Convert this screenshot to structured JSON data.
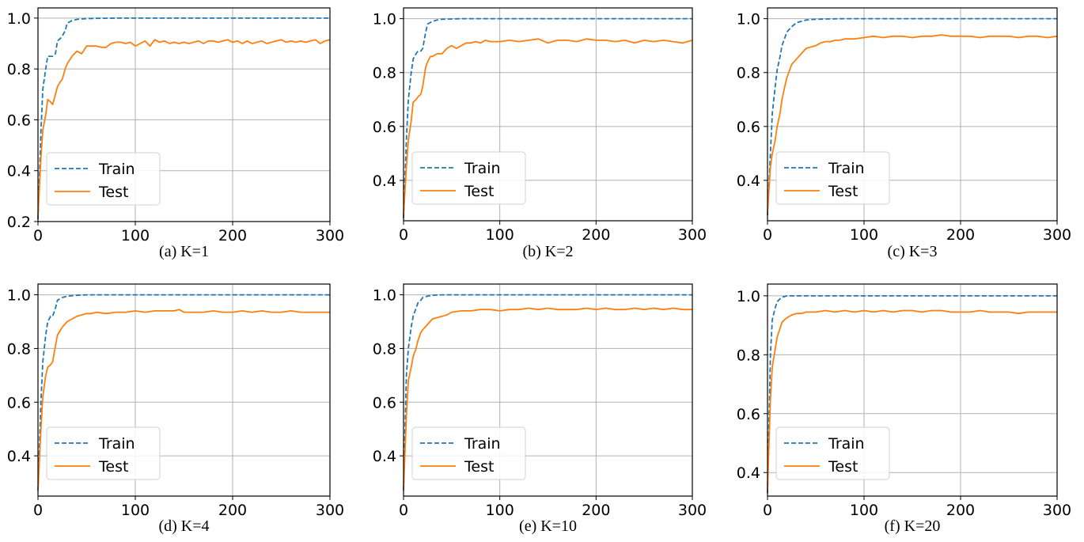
{
  "legend": {
    "train_label": "Train",
    "test_label": "Test"
  },
  "colors": {
    "train": "#1f77b4",
    "test": "#ff7f0e",
    "grid": "#b0b0b0",
    "axis": "#000000"
  },
  "chart_data": [
    {
      "type": "line",
      "caption": "(a) K=1",
      "xlim": [
        0,
        300
      ],
      "ylim": [
        0.2,
        1.04
      ],
      "xticks": [
        0,
        100,
        200,
        300
      ],
      "yticks": [
        0.2,
        0.4,
        0.6,
        0.8,
        1.0
      ],
      "yticklabels": [
        "0.2",
        "0.4",
        "0.6",
        "0.8",
        "1.0"
      ],
      "grid": true,
      "legend_position": "lower-left",
      "series": [
        {
          "name": "Train",
          "style": "dashed",
          "x": [
            0,
            3,
            5,
            8,
            10,
            13,
            15,
            18,
            20,
            23,
            25,
            28,
            30,
            35,
            40,
            50,
            60,
            80,
            100,
            150,
            200,
            250,
            300
          ],
          "y": [
            0.21,
            0.55,
            0.72,
            0.8,
            0.85,
            0.85,
            0.85,
            0.86,
            0.91,
            0.92,
            0.93,
            0.95,
            0.98,
            0.99,
            0.995,
            0.998,
            0.999,
            1.0,
            1.0,
            1.0,
            1.0,
            1.0,
            1.0
          ]
        },
        {
          "name": "Test",
          "style": "solid",
          "x": [
            0,
            3,
            5,
            8,
            10,
            13,
            15,
            18,
            20,
            23,
            25,
            28,
            30,
            35,
            40,
            45,
            50,
            55,
            60,
            65,
            70,
            75,
            80,
            85,
            90,
            95,
            100,
            105,
            110,
            115,
            120,
            125,
            130,
            135,
            140,
            145,
            150,
            155,
            160,
            165,
            170,
            175,
            180,
            185,
            190,
            195,
            200,
            205,
            210,
            215,
            220,
            225,
            230,
            235,
            240,
            245,
            250,
            255,
            260,
            265,
            270,
            275,
            280,
            285,
            290,
            295,
            300
          ],
          "y": [
            0.22,
            0.45,
            0.56,
            0.62,
            0.68,
            0.67,
            0.66,
            0.7,
            0.73,
            0.75,
            0.76,
            0.8,
            0.82,
            0.85,
            0.87,
            0.86,
            0.89,
            0.89,
            0.89,
            0.885,
            0.885,
            0.9,
            0.905,
            0.905,
            0.9,
            0.905,
            0.89,
            0.9,
            0.91,
            0.89,
            0.915,
            0.905,
            0.91,
            0.9,
            0.905,
            0.9,
            0.905,
            0.9,
            0.905,
            0.91,
            0.9,
            0.91,
            0.91,
            0.905,
            0.91,
            0.915,
            0.905,
            0.91,
            0.9,
            0.91,
            0.9,
            0.905,
            0.91,
            0.9,
            0.905,
            0.91,
            0.915,
            0.905,
            0.91,
            0.905,
            0.91,
            0.905,
            0.91,
            0.915,
            0.9,
            0.91,
            0.915
          ]
        }
      ]
    },
    {
      "type": "line",
      "caption": "(b) K=2",
      "xlim": [
        0,
        300
      ],
      "ylim": [
        0.25,
        1.04
      ],
      "xticks": [
        0,
        100,
        200,
        300
      ],
      "yticks": [
        0.4,
        0.6,
        0.8,
        1.0
      ],
      "yticklabels": [
        "0.4",
        "0.6",
        "0.8",
        "1.0"
      ],
      "grid": true,
      "legend_position": "lower-left",
      "series": [
        {
          "name": "Train",
          "style": "dashed",
          "x": [
            0,
            3,
            5,
            8,
            10,
            13,
            15,
            18,
            20,
            23,
            25,
            30,
            35,
            40,
            50,
            60,
            80,
            100,
            150,
            200,
            250,
            300
          ],
          "y": [
            0.26,
            0.55,
            0.7,
            0.8,
            0.85,
            0.87,
            0.88,
            0.88,
            0.89,
            0.95,
            0.98,
            0.99,
            0.995,
            0.998,
            0.999,
            1.0,
            1.0,
            1.0,
            1.0,
            1.0,
            1.0,
            1.0
          ]
        },
        {
          "name": "Test",
          "style": "solid",
          "x": [
            0,
            3,
            5,
            8,
            10,
            13,
            15,
            18,
            20,
            23,
            25,
            28,
            30,
            35,
            40,
            45,
            50,
            55,
            60,
            65,
            70,
            75,
            80,
            85,
            90,
            100,
            110,
            120,
            130,
            140,
            150,
            160,
            170,
            180,
            190,
            200,
            210,
            220,
            230,
            240,
            250,
            260,
            270,
            280,
            290,
            300
          ],
          "y": [
            0.27,
            0.45,
            0.55,
            0.62,
            0.69,
            0.7,
            0.71,
            0.72,
            0.75,
            0.82,
            0.84,
            0.86,
            0.86,
            0.87,
            0.87,
            0.89,
            0.9,
            0.89,
            0.9,
            0.91,
            0.91,
            0.915,
            0.91,
            0.92,
            0.915,
            0.915,
            0.92,
            0.915,
            0.92,
            0.925,
            0.91,
            0.92,
            0.92,
            0.915,
            0.925,
            0.92,
            0.92,
            0.915,
            0.92,
            0.91,
            0.92,
            0.915,
            0.92,
            0.915,
            0.91,
            0.92
          ]
        }
      ]
    },
    {
      "type": "line",
      "caption": "(c) K=3",
      "xlim": [
        0,
        300
      ],
      "ylim": [
        0.25,
        1.04
      ],
      "xticks": [
        0,
        100,
        200,
        300
      ],
      "yticks": [
        0.4,
        0.6,
        0.8,
        1.0
      ],
      "yticklabels": [
        "0.4",
        "0.6",
        "0.8",
        "1.0"
      ],
      "grid": true,
      "legend_position": "lower-left",
      "series": [
        {
          "name": "Train",
          "style": "dashed",
          "x": [
            0,
            3,
            5,
            8,
            10,
            13,
            15,
            18,
            20,
            25,
            30,
            35,
            40,
            50,
            60,
            80,
            100,
            150,
            200,
            250,
            300
          ],
          "y": [
            0.27,
            0.5,
            0.65,
            0.75,
            0.81,
            0.86,
            0.9,
            0.93,
            0.95,
            0.97,
            0.985,
            0.99,
            0.995,
            0.998,
            0.999,
            1.0,
            1.0,
            1.0,
            1.0,
            1.0,
            1.0
          ]
        },
        {
          "name": "Test",
          "style": "solid",
          "x": [
            0,
            3,
            5,
            8,
            10,
            13,
            15,
            18,
            20,
            25,
            30,
            35,
            40,
            45,
            50,
            55,
            60,
            65,
            70,
            75,
            80,
            90,
            100,
            110,
            120,
            130,
            140,
            150,
            160,
            170,
            180,
            190,
            200,
            210,
            220,
            230,
            240,
            250,
            260,
            270,
            280,
            290,
            300
          ],
          "y": [
            0.28,
            0.45,
            0.5,
            0.55,
            0.6,
            0.65,
            0.7,
            0.75,
            0.78,
            0.83,
            0.85,
            0.87,
            0.89,
            0.895,
            0.9,
            0.91,
            0.915,
            0.915,
            0.92,
            0.92,
            0.925,
            0.925,
            0.93,
            0.935,
            0.93,
            0.935,
            0.935,
            0.93,
            0.935,
            0.935,
            0.94,
            0.935,
            0.935,
            0.935,
            0.93,
            0.935,
            0.935,
            0.935,
            0.93,
            0.935,
            0.935,
            0.93,
            0.935
          ]
        }
      ]
    },
    {
      "type": "line",
      "caption": "(d) K=4",
      "xlim": [
        0,
        300
      ],
      "ylim": [
        0.25,
        1.04
      ],
      "xticks": [
        0,
        100,
        200,
        300
      ],
      "yticks": [
        0.4,
        0.6,
        0.8,
        1.0
      ],
      "yticklabels": [
        "0.4",
        "0.6",
        "0.8",
        "1.0"
      ],
      "grid": true,
      "legend_position": "lower-left",
      "series": [
        {
          "name": "Train",
          "style": "dashed",
          "x": [
            0,
            3,
            5,
            8,
            10,
            13,
            15,
            18,
            20,
            25,
            30,
            40,
            50,
            60,
            80,
            100,
            150,
            200,
            250,
            300
          ],
          "y": [
            0.27,
            0.6,
            0.75,
            0.85,
            0.9,
            0.92,
            0.92,
            0.95,
            0.98,
            0.99,
            0.995,
            0.998,
            1.0,
            1.0,
            1.0,
            1.0,
            1.0,
            1.0,
            1.0,
            1.0
          ]
        },
        {
          "name": "Test",
          "style": "solid",
          "x": [
            0,
            3,
            5,
            8,
            10,
            13,
            15,
            18,
            20,
            25,
            30,
            35,
            40,
            45,
            50,
            55,
            60,
            70,
            80,
            90,
            100,
            110,
            120,
            130,
            140,
            145,
            150,
            160,
            170,
            180,
            190,
            200,
            210,
            220,
            230,
            240,
            250,
            260,
            270,
            280,
            290,
            300
          ],
          "y": [
            0.27,
            0.5,
            0.62,
            0.7,
            0.73,
            0.74,
            0.75,
            0.81,
            0.85,
            0.88,
            0.9,
            0.91,
            0.92,
            0.925,
            0.93,
            0.93,
            0.935,
            0.93,
            0.935,
            0.935,
            0.94,
            0.935,
            0.94,
            0.94,
            0.94,
            0.945,
            0.935,
            0.935,
            0.935,
            0.94,
            0.935,
            0.935,
            0.94,
            0.935,
            0.94,
            0.935,
            0.935,
            0.94,
            0.935,
            0.935,
            0.935,
            0.935
          ]
        }
      ]
    },
    {
      "type": "line",
      "caption": "(e) K=10",
      "xlim": [
        0,
        300
      ],
      "ylim": [
        0.25,
        1.04
      ],
      "xticks": [
        0,
        100,
        200,
        300
      ],
      "yticks": [
        0.4,
        0.6,
        0.8,
        1.0
      ],
      "yticklabels": [
        "0.4",
        "0.6",
        "0.8",
        "1.0"
      ],
      "grid": true,
      "legend_position": "lower-left",
      "series": [
        {
          "name": "Train",
          "style": "dashed",
          "x": [
            0,
            3,
            5,
            8,
            10,
            13,
            15,
            18,
            20,
            25,
            30,
            40,
            50,
            60,
            80,
            100,
            150,
            200,
            250,
            300
          ],
          "y": [
            0.27,
            0.7,
            0.8,
            0.88,
            0.92,
            0.95,
            0.97,
            0.98,
            0.99,
            0.995,
            0.998,
            1.0,
            1.0,
            1.0,
            1.0,
            1.0,
            1.0,
            1.0,
            1.0,
            1.0
          ]
        },
        {
          "name": "Test",
          "style": "solid",
          "x": [
            0,
            3,
            5,
            8,
            10,
            13,
            15,
            18,
            20,
            25,
            30,
            35,
            40,
            45,
            50,
            60,
            70,
            80,
            90,
            100,
            110,
            120,
            130,
            140,
            150,
            160,
            170,
            180,
            190,
            200,
            210,
            220,
            230,
            240,
            250,
            260,
            270,
            280,
            290,
            300
          ],
          "y": [
            0.27,
            0.55,
            0.68,
            0.73,
            0.77,
            0.8,
            0.83,
            0.86,
            0.87,
            0.89,
            0.91,
            0.915,
            0.92,
            0.925,
            0.935,
            0.94,
            0.94,
            0.945,
            0.945,
            0.94,
            0.945,
            0.945,
            0.95,
            0.945,
            0.95,
            0.945,
            0.945,
            0.945,
            0.95,
            0.945,
            0.95,
            0.945,
            0.945,
            0.95,
            0.945,
            0.95,
            0.945,
            0.95,
            0.945,
            0.945
          ]
        }
      ]
    },
    {
      "type": "line",
      "caption": "(f) K=20",
      "xlim": [
        0,
        300
      ],
      "ylim": [
        0.32,
        1.04
      ],
      "xticks": [
        0,
        100,
        200,
        300
      ],
      "yticks": [
        0.4,
        0.6,
        0.8,
        1.0
      ],
      "yticklabels": [
        "0.4",
        "0.6",
        "0.8",
        "1.0"
      ],
      "grid": true,
      "legend_position": "lower-left",
      "series": [
        {
          "name": "Train",
          "style": "dashed",
          "x": [
            0,
            3,
            5,
            8,
            10,
            13,
            15,
            18,
            20,
            25,
            30,
            40,
            50,
            60,
            80,
            100,
            150,
            200,
            250,
            300
          ],
          "y": [
            0.33,
            0.8,
            0.92,
            0.96,
            0.98,
            0.99,
            0.995,
            0.998,
            1.0,
            1.0,
            1.0,
            1.0,
            1.0,
            1.0,
            1.0,
            1.0,
            1.0,
            1.0,
            1.0,
            1.0
          ]
        },
        {
          "name": "Test",
          "style": "solid",
          "x": [
            0,
            3,
            5,
            8,
            10,
            13,
            15,
            18,
            20,
            25,
            30,
            35,
            40,
            50,
            60,
            70,
            80,
            90,
            100,
            110,
            120,
            130,
            140,
            150,
            160,
            170,
            180,
            190,
            200,
            210,
            220,
            230,
            240,
            250,
            260,
            270,
            280,
            290,
            300
          ],
          "y": [
            0.34,
            0.65,
            0.76,
            0.82,
            0.86,
            0.89,
            0.91,
            0.92,
            0.925,
            0.935,
            0.94,
            0.94,
            0.945,
            0.945,
            0.95,
            0.945,
            0.95,
            0.945,
            0.95,
            0.945,
            0.95,
            0.945,
            0.95,
            0.95,
            0.945,
            0.95,
            0.95,
            0.945,
            0.945,
            0.945,
            0.95,
            0.945,
            0.945,
            0.945,
            0.94,
            0.945,
            0.945,
            0.945,
            0.945
          ]
        }
      ]
    }
  ]
}
